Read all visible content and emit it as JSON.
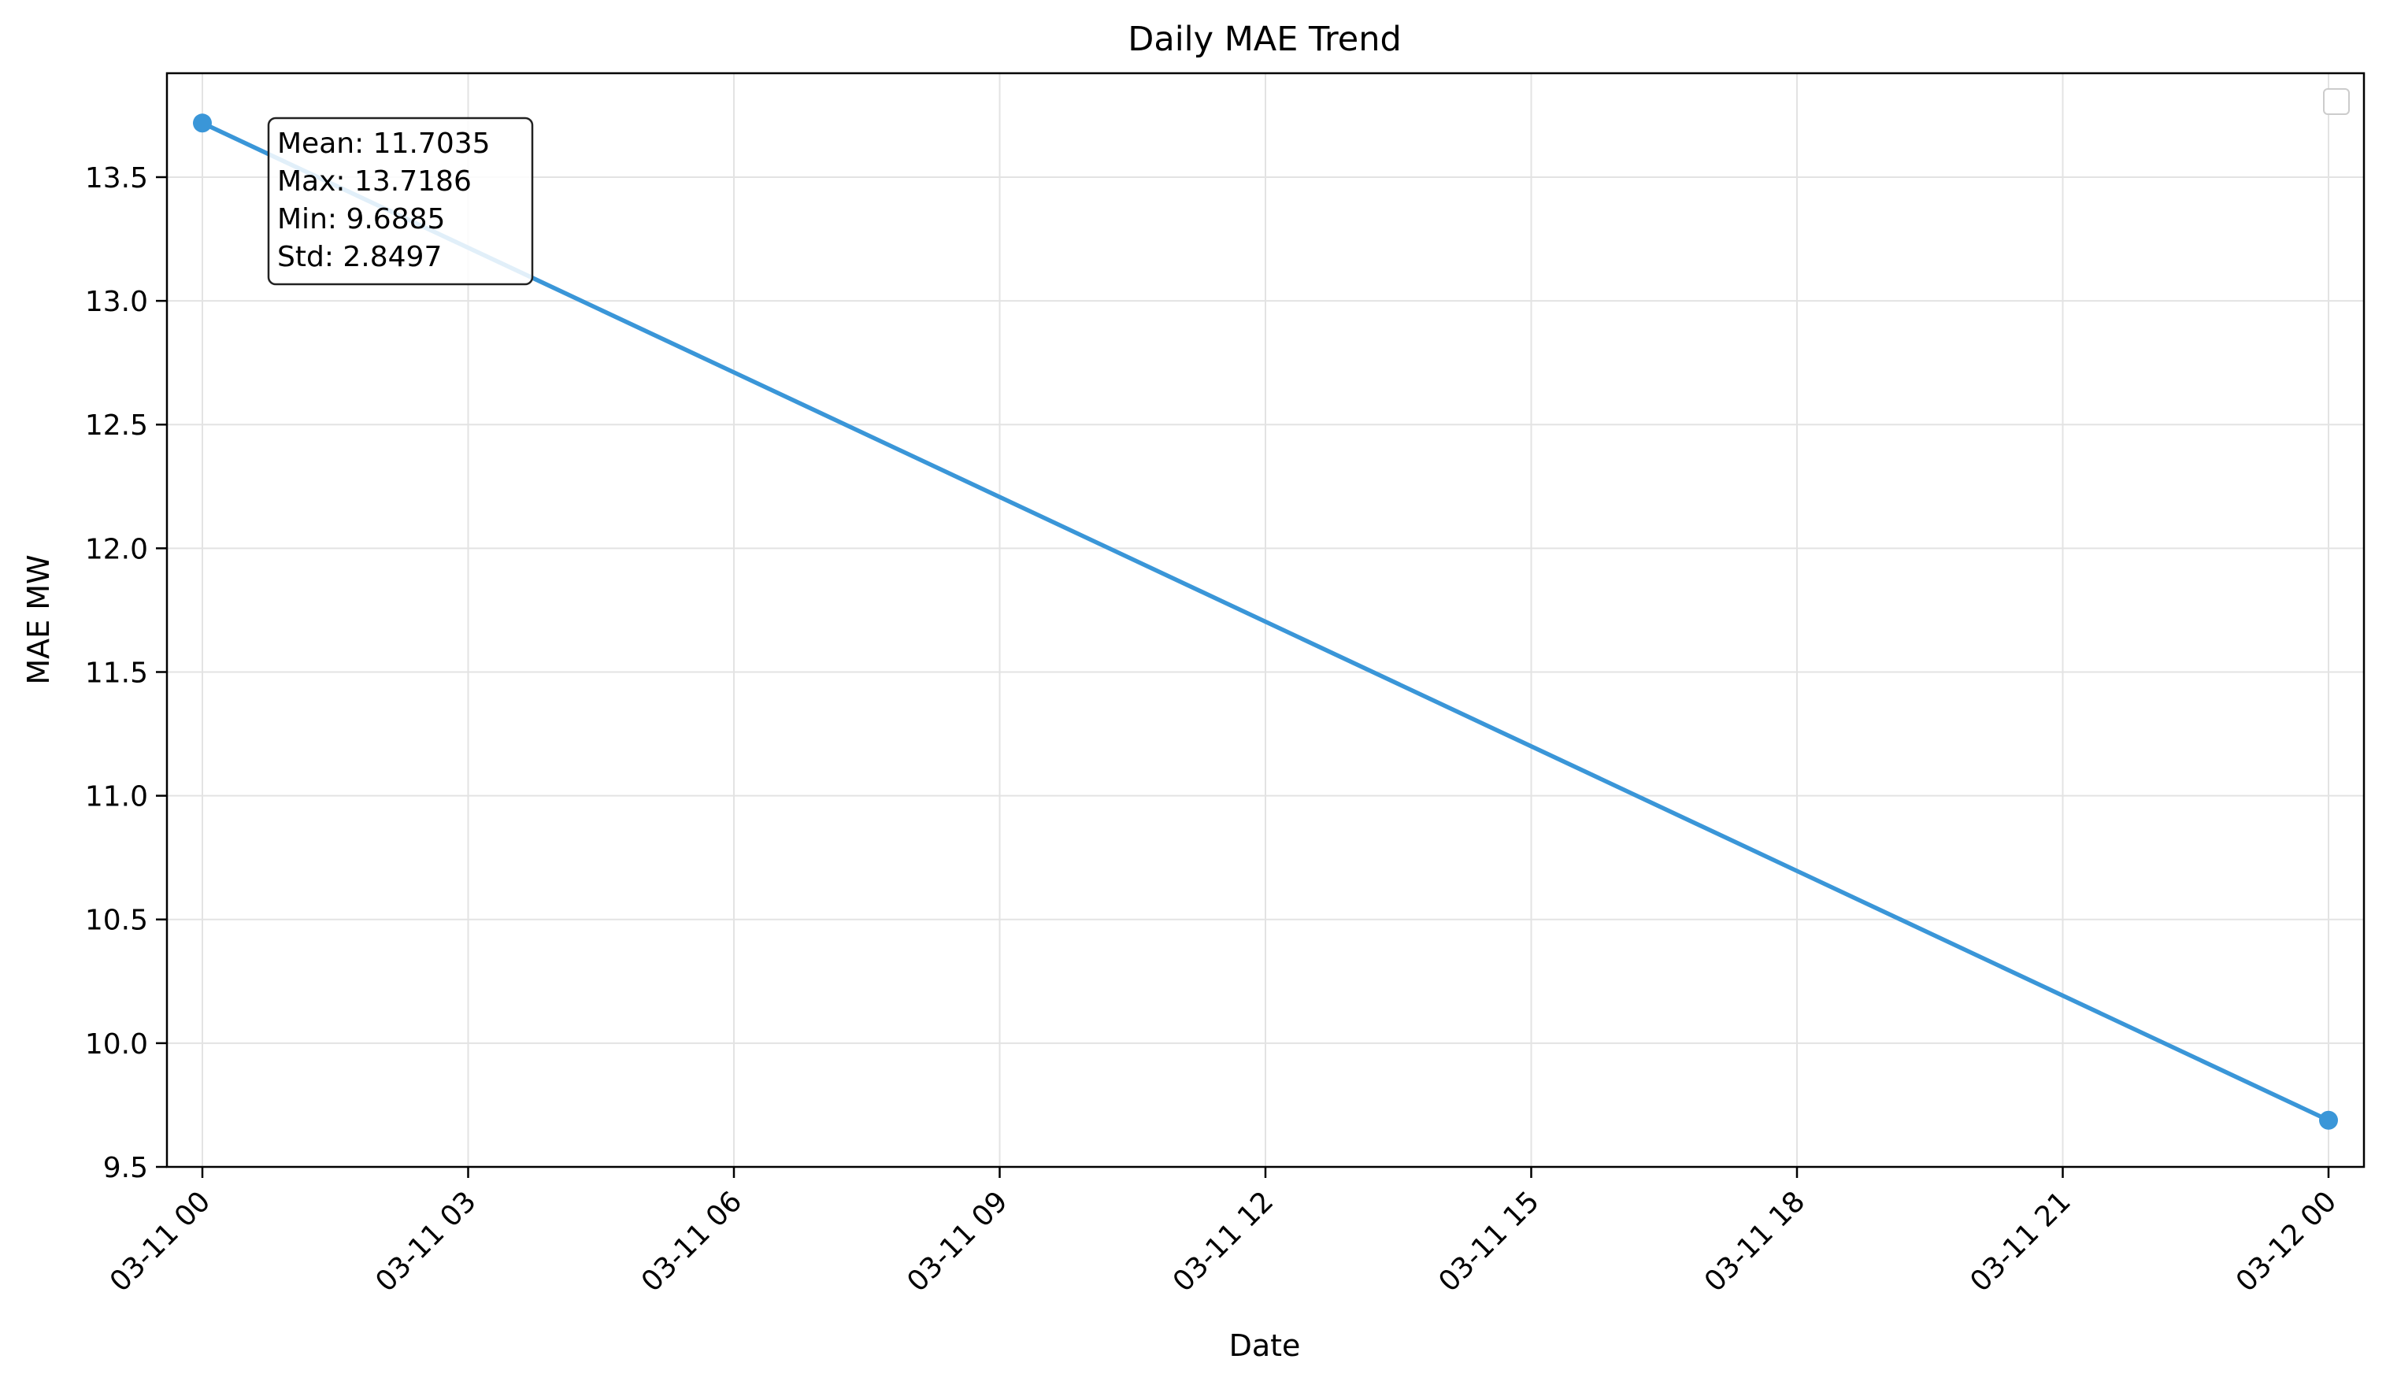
{
  "chart_data": {
    "type": "line",
    "title": "Daily MAE Trend",
    "xlabel": "Date",
    "ylabel": "MAE MW",
    "x": [
      "03-11 00",
      "03-12 00"
    ],
    "series": [
      {
        "values": [
          13.7186,
          9.6885
        ]
      }
    ],
    "xticks": [
      "03-11 00",
      "03-11 03",
      "03-11 06",
      "03-11 09",
      "03-11 12",
      "03-11 15",
      "03-11 18",
      "03-11 21",
      "03-12 00"
    ],
    "xlim": [
      "03-10 23:36",
      "03-12 00:24"
    ],
    "yticks": [
      "9.5",
      "10.0",
      "10.5",
      "11.0",
      "11.5",
      "12.0",
      "12.5",
      "13.0",
      "13.5"
    ],
    "ylim": [
      9.5,
      13.92
    ],
    "grid": true,
    "legend": "top-right",
    "line_color": "#3a96d8",
    "stats_box": {
      "lines": [
        "Mean: 11.7035",
        "Max: 13.7186",
        "Min: 9.6885",
        "Std: 2.8497"
      ],
      "position": "top-left"
    }
  }
}
